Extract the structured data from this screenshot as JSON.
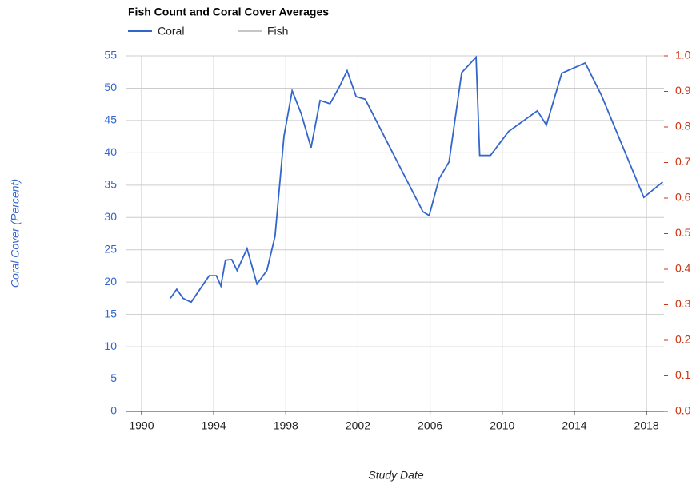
{
  "chart_data": {
    "type": "line",
    "title": "Fish Count and Coral Cover Averages",
    "x_label": "Study Date",
    "y_label": "Coral Cover (Percent)",
    "x": [
      1991.6,
      1991.95,
      1992.3,
      1992.75,
      1993.75,
      1994.15,
      1994.4,
      1994.65,
      1995.0,
      1995.3,
      1995.85,
      1996.4,
      1996.95,
      1997.4,
      1997.9,
      1998.35,
      1998.85,
      1999.4,
      1999.9,
      2000.45,
      2000.95,
      2001.4,
      2001.9,
      2002.4,
      2005.6,
      2005.95,
      2006.5,
      2007.05,
      2007.75,
      2008.55,
      2008.75,
      2009.35,
      2010.35,
      2011.95,
      2012.45,
      2013.3,
      2014.6,
      2015.5,
      2017.85,
      2018.9
    ],
    "series": [
      {
        "name": "Coral",
        "color": "#3366cc",
        "values": [
          17.5,
          18.9,
          17.5,
          16.9,
          21.0,
          21.0,
          19.4,
          23.4,
          23.5,
          21.8,
          25.2,
          19.7,
          21.8,
          27.1,
          42.6,
          49.6,
          46.1,
          40.8,
          48.1,
          47.6,
          50.1,
          52.7,
          48.7,
          48.3,
          30.9,
          30.3,
          36.0,
          38.6,
          52.4,
          54.8,
          39.6,
          39.6,
          43.3,
          46.5,
          44.3,
          52.3,
          53.9,
          48.9,
          33.1,
          35.5
        ]
      },
      {
        "name": "Fish",
        "color": "#c6c6c6",
        "axis": "y2",
        "values": [
          null,
          null,
          null,
          null,
          null,
          null,
          null,
          null,
          null,
          null,
          null,
          null,
          null,
          null,
          null,
          null,
          null,
          null,
          null,
          null,
          null,
          null,
          null,
          null,
          null,
          null,
          null,
          null,
          null,
          null,
          null,
          null,
          null,
          null,
          null,
          null,
          null,
          null,
          null,
          null
        ]
      }
    ],
    "xlim": [
      1989.16,
      2018.97
    ],
    "xticks": [
      1990,
      1994,
      1998,
      2002,
      2006,
      2010,
      2014,
      2018
    ],
    "ylim": [
      0,
      55
    ],
    "yticks": [
      0,
      5,
      10,
      15,
      20,
      25,
      30,
      35,
      40,
      45,
      50,
      55
    ],
    "y2lim": [
      0,
      1
    ],
    "y2ticks": [
      {
        "value": 0,
        "label": "0.0"
      },
      0.1,
      0.2,
      0.3,
      0.4,
      0.5,
      0.6,
      0.7,
      0.8,
      0.9,
      {
        "value": 1,
        "label": "1.0"
      }
    ],
    "grid": true,
    "legend": "top"
  }
}
